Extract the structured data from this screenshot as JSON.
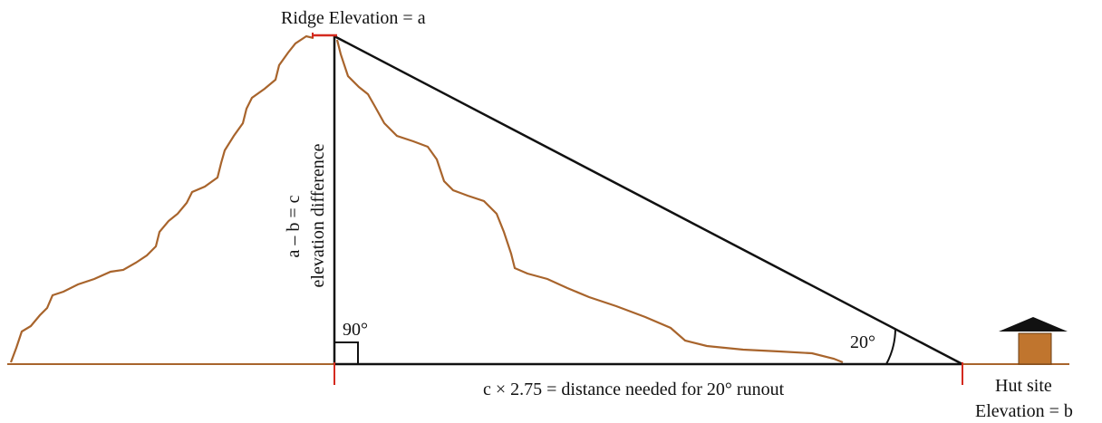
{
  "diagram": {
    "ridge_label": "Ridge Elevation = a",
    "vertical_label_1": "a – b = c",
    "vertical_label_2": "elevation difference",
    "right_angle_label": "90°",
    "runout_angle_label": "20°",
    "distance_label": "c × 2.75 = distance needed for 20° runout",
    "hut_label_1": "Hut site",
    "hut_label_2": "Elevation = b"
  }
}
